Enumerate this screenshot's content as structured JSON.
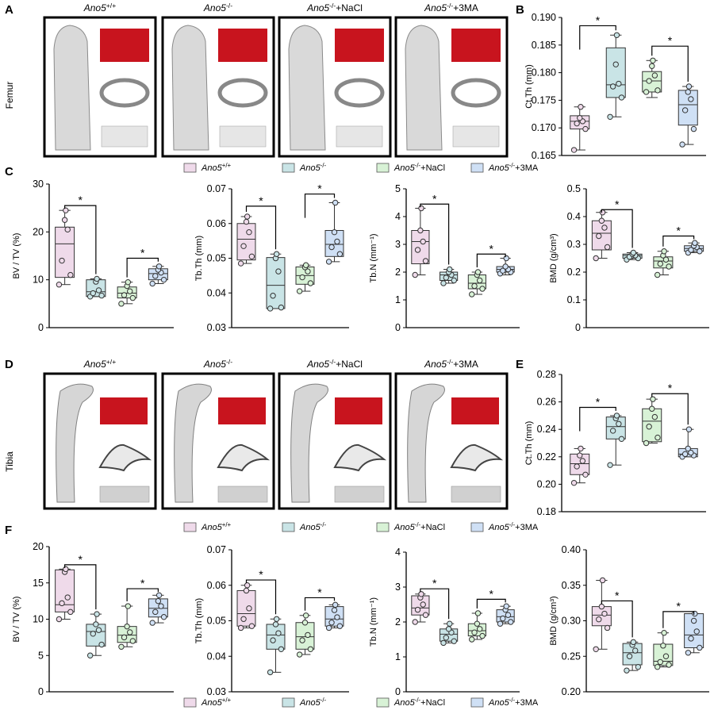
{
  "figure": {
    "panel_labels": {
      "A": "A",
      "B": "B",
      "C": "C",
      "D": "D",
      "E": "E",
      "F": "F"
    },
    "row_labels": {
      "femur": "Femur",
      "tibia": "Tibia"
    }
  },
  "groups": [
    {
      "name": "Ano5",
      "sup": "+/+",
      "suffix": ""
    },
    {
      "name": "Ano5",
      "sup": "-/-",
      "suffix": ""
    },
    {
      "name": "Ano5",
      "sup": "-/-",
      "suffix": "+NaCl"
    },
    {
      "name": "Ano5",
      "sup": "-/-",
      "suffix": "+3MA"
    }
  ],
  "colors": {
    "group_fills": [
      "#efdaea",
      "#c9e4e6",
      "#d8f2d6",
      "#cfe0f5"
    ],
    "sig_line": "#000000",
    "scan_bg": "#ffffff",
    "trabecular": "#c8141e"
  },
  "significance_symbol": "*",
  "chart_data": [
    {
      "id": "femur_ctth",
      "panel": "B",
      "type": "box",
      "ylabel": "Ct.Th (mm)",
      "ylim": [
        0.165,
        0.19
      ],
      "yticks": [
        0.165,
        0.17,
        0.175,
        0.18,
        0.185,
        0.19
      ],
      "tick_labels": [
        "0.165",
        "0.170",
        "0.175",
        "0.180",
        "0.185",
        "0.190"
      ],
      "series": [
        {
          "group": 0,
          "min": 0.166,
          "q1": 0.1698,
          "median": 0.1712,
          "q3": 0.1722,
          "max": 0.1738,
          "points": [
            0.166,
            0.1698,
            0.1708,
            0.1712,
            0.1718,
            0.1738
          ]
        },
        {
          "group": 1,
          "min": 0.172,
          "q1": 0.1755,
          "median": 0.1778,
          "q3": 0.1845,
          "max": 0.1868,
          "points": [
            0.172,
            0.1755,
            0.1775,
            0.178,
            0.1815,
            0.1868
          ]
        },
        {
          "group": 2,
          "min": 0.1755,
          "q1": 0.1765,
          "median": 0.1785,
          "q3": 0.1802,
          "max": 0.1822,
          "points": [
            0.1765,
            0.1768,
            0.1785,
            0.1795,
            0.1812,
            0.1822
          ]
        },
        {
          "group": 3,
          "min": 0.167,
          "q1": 0.1705,
          "median": 0.1742,
          "q3": 0.1768,
          "max": 0.1775,
          "points": [
            0.167,
            0.1698,
            0.1732,
            0.1752,
            0.1765,
            0.1775
          ]
        }
      ],
      "sig": [
        {
          "from": 0,
          "to": 1,
          "y": 0.1885
        },
        {
          "from": 2,
          "to": 3,
          "y": 0.1848
        }
      ]
    },
    {
      "id": "femur_bvtv",
      "panel": "C",
      "type": "box",
      "ylabel": "BV / TV (%)",
      "ylim": [
        0,
        30
      ],
      "yticks": [
        0,
        10,
        20,
        30
      ],
      "tick_labels": [
        "0",
        "10",
        "20",
        "30"
      ],
      "series": [
        {
          "group": 0,
          "min": 9,
          "q1": 10.5,
          "median": 17.5,
          "q3": 21,
          "max": 24.5,
          "points": [
            9,
            11,
            14,
            20.5,
            22.5,
            24.5
          ]
        },
        {
          "group": 1,
          "min": 6.5,
          "q1": 6.5,
          "median": 7.5,
          "q3": 10,
          "max": 10.2,
          "points": [
            6.5,
            6.7,
            7.2,
            7.8,
            9.6,
            10.2
          ]
        },
        {
          "group": 2,
          "min": 5,
          "q1": 6.2,
          "median": 7.2,
          "q3": 8.5,
          "max": 9.5,
          "points": [
            5,
            6.2,
            6.8,
            7.6,
            8.7,
            9.5
          ]
        },
        {
          "group": 3,
          "min": 9.2,
          "q1": 10,
          "median": 11.3,
          "q3": 12.3,
          "max": 12.8,
          "points": [
            9.2,
            10,
            10.8,
            11.5,
            12.1,
            12.8
          ]
        }
      ],
      "sig": [
        {
          "from": 0,
          "to": 1,
          "y": 25.5
        },
        {
          "from": 2,
          "to": 3,
          "y": 14.5
        }
      ]
    },
    {
      "id": "femur_tbth",
      "panel": "C",
      "type": "box",
      "ylabel": "Tb.Th (mm)",
      "ylim": [
        0.03,
        0.07
      ],
      "yticks": [
        0.03,
        0.04,
        0.05,
        0.06,
        0.07
      ],
      "tick_labels": [
        "0.03",
        "0.04",
        "0.05",
        "0.06",
        "0.07"
      ],
      "series": [
        {
          "group": 0,
          "min": 0.0485,
          "q1": 0.0495,
          "median": 0.0555,
          "q3": 0.06,
          "max": 0.062,
          "points": [
            0.0485,
            0.0505,
            0.0535,
            0.0575,
            0.0605,
            0.062
          ]
        },
        {
          "group": 1,
          "min": 0.0355,
          "q1": 0.0355,
          "median": 0.0422,
          "q3": 0.0502,
          "max": 0.0512,
          "points": [
            0.0355,
            0.0358,
            0.0392,
            0.0462,
            0.05,
            0.0512
          ]
        },
        {
          "group": 2,
          "min": 0.0405,
          "q1": 0.0425,
          "median": 0.045,
          "q3": 0.0475,
          "max": 0.048,
          "points": [
            0.0405,
            0.0428,
            0.0445,
            0.0462,
            0.0474,
            0.048
          ]
        },
        {
          "group": 3,
          "min": 0.049,
          "q1": 0.0505,
          "median": 0.054,
          "q3": 0.058,
          "max": 0.066,
          "points": [
            0.049,
            0.0512,
            0.0532,
            0.0548,
            0.0575,
            0.066
          ]
        }
      ],
      "sig": [
        {
          "from": 0,
          "to": 1,
          "y": 0.065
        },
        {
          "from": 2,
          "to": 3,
          "y": 0.0685
        }
      ]
    },
    {
      "id": "femur_tbn",
      "panel": "C",
      "type": "box",
      "ylabel": "Tb.N (mm⁻¹)",
      "ylim": [
        0,
        5
      ],
      "yticks": [
        0,
        1,
        2,
        3,
        4,
        5
      ],
      "tick_labels": [
        "0",
        "1",
        "2",
        "3",
        "4",
        "5"
      ],
      "series": [
        {
          "group": 0,
          "min": 1.9,
          "q1": 2.3,
          "median": 3.1,
          "q3": 3.5,
          "max": 4.3,
          "points": [
            1.9,
            2.4,
            2.8,
            3.1,
            3.5,
            4.3
          ]
        },
        {
          "group": 1,
          "min": 1.6,
          "q1": 1.7,
          "median": 1.9,
          "q3": 2.0,
          "max": 2.1,
          "points": [
            1.6,
            1.7,
            1.8,
            1.9,
            2.0,
            2.1
          ]
        },
        {
          "group": 2,
          "min": 1.2,
          "q1": 1.4,
          "median": 1.6,
          "q3": 1.9,
          "max": 2.0,
          "points": [
            1.2,
            1.4,
            1.5,
            1.7,
            1.9,
            2.0
          ]
        },
        {
          "group": 3,
          "min": 1.9,
          "q1": 2.0,
          "median": 2.1,
          "q3": 2.2,
          "max": 2.5,
          "points": [
            1.95,
            2.0,
            2.05,
            2.1,
            2.2,
            2.5
          ]
        }
      ],
      "sig": [
        {
          "from": 0,
          "to": 1,
          "y": 4.45
        },
        {
          "from": 2,
          "to": 3,
          "y": 2.65
        }
      ]
    },
    {
      "id": "femur_bmd",
      "panel": "C",
      "type": "box",
      "ylabel": "BMD (g/cm³)",
      "ylim": [
        0,
        0.5
      ],
      "yticks": [
        0,
        0.1,
        0.2,
        0.3,
        0.4,
        0.5
      ],
      "tick_labels": [
        "0",
        "0.1",
        "0.2",
        "0.3",
        "0.4",
        "0.5"
      ],
      "series": [
        {
          "group": 0,
          "min": 0.25,
          "q1": 0.28,
          "median": 0.34,
          "q3": 0.385,
          "max": 0.415,
          "points": [
            0.25,
            0.29,
            0.33,
            0.36,
            0.385,
            0.415
          ]
        },
        {
          "group": 1,
          "min": 0.245,
          "q1": 0.25,
          "median": 0.26,
          "q3": 0.265,
          "max": 0.27,
          "points": [
            0.245,
            0.25,
            0.255,
            0.26,
            0.265,
            0.27
          ]
        },
        {
          "group": 2,
          "min": 0.19,
          "q1": 0.215,
          "median": 0.24,
          "q3": 0.255,
          "max": 0.275,
          "points": [
            0.19,
            0.22,
            0.23,
            0.245,
            0.26,
            0.275
          ]
        },
        {
          "group": 3,
          "min": 0.27,
          "q1": 0.275,
          "median": 0.285,
          "q3": 0.295,
          "max": 0.305,
          "points": [
            0.27,
            0.275,
            0.28,
            0.29,
            0.295,
            0.305
          ]
        }
      ],
      "sig": [
        {
          "from": 0,
          "to": 1,
          "y": 0.425
        },
        {
          "from": 2,
          "to": 3,
          "y": 0.33
        }
      ]
    },
    {
      "id": "tibia_ctth",
      "panel": "E",
      "type": "box",
      "ylabel": "Ct.Th (mm)",
      "ylim": [
        0.18,
        0.28
      ],
      "yticks": [
        0.18,
        0.2,
        0.22,
        0.24,
        0.26,
        0.28
      ],
      "tick_labels": [
        "0.18",
        "0.20",
        "0.22",
        "0.24",
        "0.26",
        "0.28"
      ],
      "series": [
        {
          "group": 0,
          "min": 0.201,
          "q1": 0.207,
          "median": 0.215,
          "q3": 0.222,
          "max": 0.226,
          "points": [
            0.201,
            0.207,
            0.213,
            0.217,
            0.221,
            0.226
          ]
        },
        {
          "group": 1,
          "min": 0.214,
          "q1": 0.233,
          "median": 0.242,
          "q3": 0.249,
          "max": 0.25,
          "points": [
            0.214,
            0.233,
            0.239,
            0.244,
            0.248,
            0.25
          ]
        },
        {
          "group": 2,
          "min": 0.23,
          "q1": 0.231,
          "median": 0.246,
          "q3": 0.255,
          "max": 0.262,
          "points": [
            0.23,
            0.234,
            0.242,
            0.249,
            0.255,
            0.262
          ]
        },
        {
          "group": 3,
          "min": 0.22,
          "q1": 0.22,
          "median": 0.222,
          "q3": 0.226,
          "max": 0.24,
          "points": [
            0.22,
            0.221,
            0.222,
            0.223,
            0.226,
            0.24
          ]
        }
      ],
      "sig": [
        {
          "from": 0,
          "to": 1,
          "y": 0.256
        },
        {
          "from": 2,
          "to": 3,
          "y": 0.266
        }
      ]
    },
    {
      "id": "tibia_bvtv",
      "panel": "F",
      "type": "box",
      "ylabel": "BV / TV (%)",
      "ylim": [
        0,
        20
      ],
      "yticks": [
        0,
        5,
        10,
        15,
        20
      ],
      "tick_labels": [
        "0",
        "5",
        "10",
        "15",
        "20"
      ],
      "series": [
        {
          "group": 0,
          "min": 10,
          "q1": 11,
          "median": 12,
          "q3": 16.8,
          "max": 16.9,
          "points": [
            10,
            11,
            12.2,
            13,
            16.5,
            16.9
          ]
        },
        {
          "group": 1,
          "min": 5,
          "q1": 6.3,
          "median": 8.3,
          "q3": 9.3,
          "max": 10.7,
          "points": [
            5,
            6.5,
            8,
            8.5,
            9.3,
            10.7
          ]
        },
        {
          "group": 2,
          "min": 6.2,
          "q1": 6.8,
          "median": 7.8,
          "q3": 9,
          "max": 11.8,
          "points": [
            6.2,
            7,
            7.5,
            8.2,
            9,
            11.8
          ]
        },
        {
          "group": 3,
          "min": 9.5,
          "q1": 10.3,
          "median": 11.5,
          "q3": 12.8,
          "max": 13.3,
          "points": [
            9.5,
            10.3,
            11,
            11.8,
            12.5,
            13.3
          ]
        }
      ],
      "sig": [
        {
          "from": 0,
          "to": 1,
          "y": 17.5
        },
        {
          "from": 2,
          "to": 3,
          "y": 14.2
        }
      ]
    },
    {
      "id": "tibia_tbth",
      "panel": "F",
      "type": "box",
      "ylabel": "Tb.Th (mm)",
      "ylim": [
        0.03,
        0.07
      ],
      "yticks": [
        0.03,
        0.04,
        0.05,
        0.06,
        0.07
      ],
      "tick_labels": [
        "0.03",
        "0.04",
        "0.05",
        "0.06",
        "0.07"
      ],
      "series": [
        {
          "group": 0,
          "min": 0.048,
          "q1": 0.0485,
          "median": 0.052,
          "q3": 0.0585,
          "max": 0.06,
          "points": [
            0.048,
            0.0485,
            0.0505,
            0.0535,
            0.0585,
            0.06
          ]
        },
        {
          "group": 1,
          "min": 0.0355,
          "q1": 0.042,
          "median": 0.046,
          "q3": 0.049,
          "max": 0.0505,
          "points": [
            0.0355,
            0.042,
            0.0445,
            0.0465,
            0.049,
            0.0505
          ]
        },
        {
          "group": 2,
          "min": 0.0405,
          "q1": 0.042,
          "median": 0.0455,
          "q3": 0.0495,
          "max": 0.0515,
          "points": [
            0.0405,
            0.042,
            0.0445,
            0.046,
            0.0495,
            0.0515
          ]
        },
        {
          "group": 3,
          "min": 0.048,
          "q1": 0.0485,
          "median": 0.0505,
          "q3": 0.054,
          "max": 0.0545,
          "points": [
            0.048,
            0.0485,
            0.0495,
            0.051,
            0.053,
            0.0545
          ]
        }
      ],
      "sig": [
        {
          "from": 0,
          "to": 1,
          "y": 0.0615
        },
        {
          "from": 2,
          "to": 3,
          "y": 0.0565
        }
      ]
    },
    {
      "id": "tibia_tbn",
      "panel": "F",
      "type": "box",
      "ylabel": "Tb.N (mm⁻¹)",
      "ylim": [
        0,
        4
      ],
      "yticks": [
        0,
        1,
        2,
        3,
        4
      ],
      "tick_labels": [
        "0",
        "1",
        "2",
        "3",
        "4"
      ],
      "series": [
        {
          "group": 0,
          "min": 2.0,
          "q1": 2.2,
          "median": 2.4,
          "q3": 2.75,
          "max": 2.8,
          "points": [
            2.0,
            2.2,
            2.35,
            2.5,
            2.7,
            2.8
          ]
        },
        {
          "group": 1,
          "min": 1.4,
          "q1": 1.45,
          "median": 1.65,
          "q3": 1.8,
          "max": 1.95,
          "points": [
            1.4,
            1.45,
            1.55,
            1.7,
            1.8,
            1.95
          ]
        },
        {
          "group": 2,
          "min": 1.5,
          "q1": 1.6,
          "median": 1.75,
          "q3": 1.95,
          "max": 2.25,
          "points": [
            1.5,
            1.6,
            1.7,
            1.8,
            1.95,
            2.25
          ]
        },
        {
          "group": 3,
          "min": 1.95,
          "q1": 2.0,
          "median": 2.15,
          "q3": 2.35,
          "max": 2.45,
          "points": [
            1.95,
            2.0,
            2.1,
            2.2,
            2.35,
            2.45
          ]
        }
      ],
      "sig": [
        {
          "from": 0,
          "to": 1,
          "y": 2.95
        },
        {
          "from": 2,
          "to": 3,
          "y": 2.65
        }
      ]
    },
    {
      "id": "tibia_bmd",
      "panel": "F",
      "type": "box",
      "ylabel": "BMD (g/cm³)",
      "ylim": [
        0.2,
        0.4
      ],
      "yticks": [
        0.2,
        0.25,
        0.3,
        0.35,
        0.4
      ],
      "tick_labels": [
        "0.20",
        "0.25",
        "0.30",
        "0.35",
        "0.40"
      ],
      "series": [
        {
          "group": 0,
          "min": 0.26,
          "q1": 0.293,
          "median": 0.308,
          "q3": 0.32,
          "max": 0.357,
          "points": [
            0.26,
            0.29,
            0.302,
            0.31,
            0.32,
            0.357
          ]
        },
        {
          "group": 1,
          "min": 0.23,
          "q1": 0.238,
          "median": 0.255,
          "q3": 0.268,
          "max": 0.27,
          "points": [
            0.23,
            0.235,
            0.25,
            0.258,
            0.266,
            0.27
          ]
        },
        {
          "group": 2,
          "min": 0.235,
          "q1": 0.237,
          "median": 0.243,
          "q3": 0.267,
          "max": 0.283,
          "points": [
            0.235,
            0.238,
            0.242,
            0.25,
            0.265,
            0.283
          ]
        },
        {
          "group": 3,
          "min": 0.255,
          "q1": 0.262,
          "median": 0.28,
          "q3": 0.31,
          "max": 0.31,
          "points": [
            0.255,
            0.262,
            0.275,
            0.285,
            0.3,
            0.31
          ]
        }
      ],
      "sig": [
        {
          "from": 0,
          "to": 1,
          "y": 0.328
        },
        {
          "from": 2,
          "to": 3,
          "y": 0.313
        }
      ]
    }
  ]
}
